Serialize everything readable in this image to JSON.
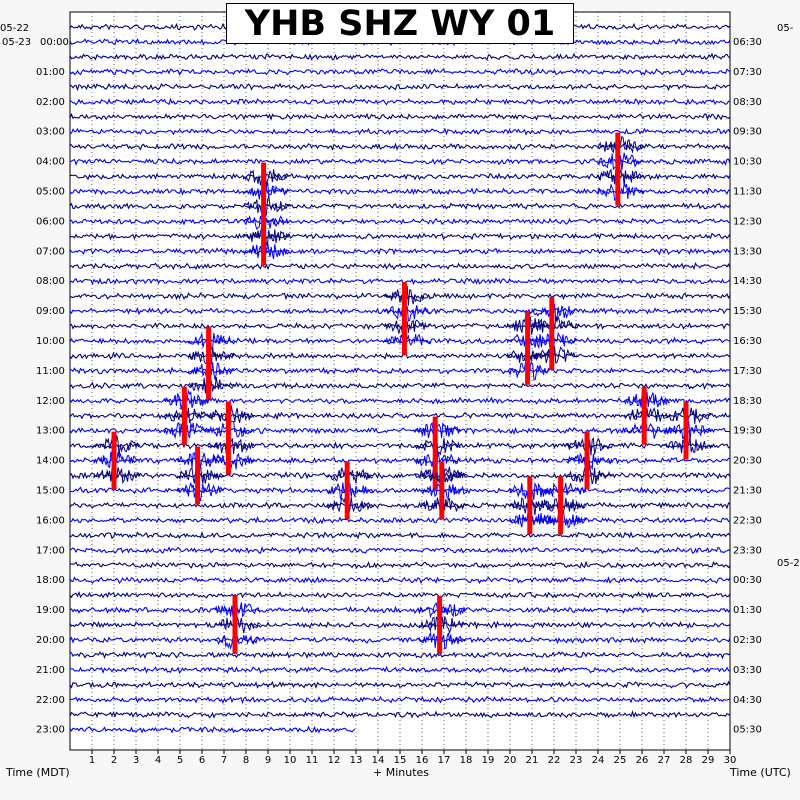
{
  "title": "YHB SHZ WY 01",
  "left_axis": {
    "start_date": "05-22",
    "date_label": "05-23",
    "title": "Time (MDT)",
    "hour_labels": [
      "00:00",
      "01:00",
      "02:00",
      "03:00",
      "04:00",
      "05:00",
      "06:00",
      "07:00",
      "08:00",
      "09:00",
      "10:00",
      "11:00",
      "12:00",
      "13:00",
      "14:00",
      "15:00",
      "16:00",
      "17:00",
      "18:00",
      "19:00",
      "20:00",
      "21:00",
      "22:00",
      "23:00"
    ]
  },
  "right_axis": {
    "title": "Time (UTC)",
    "start_date": "05-",
    "date_change": "05-2",
    "hour_labels": [
      "06:30",
      "07:30",
      "08:30",
      "09:30",
      "10:30",
      "11:30",
      "12:30",
      "13:30",
      "14:30",
      "15:30",
      "16:30",
      "17:30",
      "18:30",
      "19:30",
      "20:30",
      "21:30",
      "22:30",
      "23:30",
      "00:30",
      "01:30",
      "02:30",
      "03:30",
      "04:30",
      "05:30"
    ]
  },
  "x_axis": {
    "title": "+ Minutes",
    "ticks": [
      "1",
      "2",
      "3",
      "4",
      "5",
      "6",
      "7",
      "8",
      "9",
      "10",
      "11",
      "12",
      "13",
      "14",
      "15",
      "16",
      "17",
      "18",
      "19",
      "20",
      "21",
      "22",
      "23",
      "24",
      "25",
      "26",
      "27",
      "28",
      "29",
      "30"
    ]
  },
  "chart_data": {
    "type": "line",
    "description_free": true,
    "rows_per_hour": 2,
    "minutes_per_row": 30,
    "row_count": 48,
    "last_row_minutes": 13,
    "row_colors": [
      "#000080",
      "#0000ff"
    ],
    "event_color": "#ff0000",
    "grid_color": "#000000",
    "events": [
      {
        "row": 10,
        "minute": 8.8,
        "span_rows": 6
      },
      {
        "row": 8,
        "minute": 24.9,
        "span_rows": 4
      },
      {
        "row": 18,
        "minute": 15.2,
        "span_rows": 4
      },
      {
        "row": 20,
        "minute": 20.8,
        "span_rows": 4
      },
      {
        "row": 19,
        "minute": 21.9,
        "span_rows": 4
      },
      {
        "row": 21,
        "minute": 6.3,
        "span_rows": 4
      },
      {
        "row": 25,
        "minute": 5.2,
        "span_rows": 3
      },
      {
        "row": 25,
        "minute": 26.1,
        "span_rows": 3
      },
      {
        "row": 26,
        "minute": 7.2,
        "span_rows": 4
      },
      {
        "row": 27,
        "minute": 16.6,
        "span_rows": 4
      },
      {
        "row": 26,
        "minute": 28.0,
        "span_rows": 3
      },
      {
        "row": 28,
        "minute": 2.0,
        "span_rows": 3
      },
      {
        "row": 28,
        "minute": 23.5,
        "span_rows": 3
      },
      {
        "row": 29,
        "minute": 5.8,
        "span_rows": 3
      },
      {
        "row": 30,
        "minute": 12.6,
        "span_rows": 3
      },
      {
        "row": 30,
        "minute": 16.9,
        "span_rows": 3
      },
      {
        "row": 31,
        "minute": 20.9,
        "span_rows": 3
      },
      {
        "row": 31,
        "minute": 22.3,
        "span_rows": 3
      },
      {
        "row": 39,
        "minute": 7.5,
        "span_rows": 3
      },
      {
        "row": 39,
        "minute": 16.8,
        "span_rows": 3
      }
    ]
  }
}
